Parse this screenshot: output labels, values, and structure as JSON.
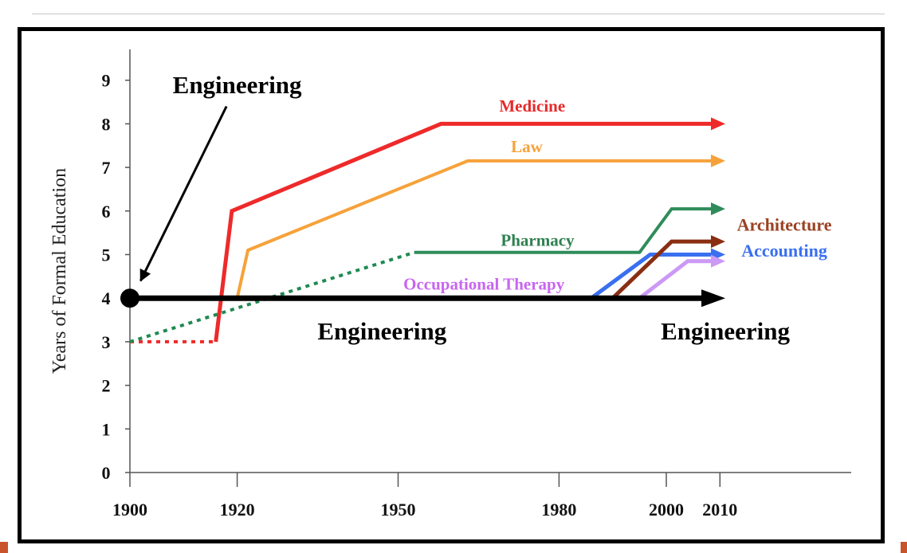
{
  "chart_data": {
    "type": "line",
    "title": "",
    "xlabel": "",
    "ylabel": "Years of Formal Education",
    "xlim": [
      1900,
      2040
    ],
    "ylim": [
      0,
      9.6
    ],
    "x_ticks": [
      1900,
      1920,
      1950,
      1980,
      2000,
      2010
    ],
    "x_ticks_minor": [
      2010
    ],
    "y_ticks": [
      0,
      1,
      2,
      3,
      4,
      5,
      6,
      7,
      8,
      9
    ],
    "series": [
      {
        "name": "Medicine",
        "color": "#ee2a2a",
        "width": 5,
        "dash": false,
        "arrow": true,
        "points": [
          [
            1916,
            3.0
          ],
          [
            1919,
            6.0
          ],
          [
            1958,
            8.0
          ],
          [
            2011,
            8.0
          ]
        ]
      },
      {
        "name": "Medicine (pre-1916)",
        "color": "#ee2a2a",
        "width": 4,
        "dash": true,
        "arrow": false,
        "points": [
          [
            1900,
            3.0
          ],
          [
            1916,
            3.0
          ]
        ]
      },
      {
        "name": "Law",
        "color": "#f6a23a",
        "width": 4,
        "dash": false,
        "arrow": true,
        "points": [
          [
            1920,
            4.0
          ],
          [
            1922,
            5.1
          ],
          [
            1963,
            7.15
          ],
          [
            2011,
            7.15
          ]
        ]
      },
      {
        "name": "Pharmacy (early)",
        "color": "#1f8a52",
        "width": 4,
        "dash": true,
        "arrow": false,
        "points": [
          [
            1900,
            3.0
          ],
          [
            1953,
            5.05
          ]
        ]
      },
      {
        "name": "Pharmacy",
        "color": "#2f8c5a",
        "width": 4,
        "dash": false,
        "arrow": true,
        "points": [
          [
            1953,
            5.05
          ],
          [
            1995,
            5.05
          ],
          [
            2001,
            6.05
          ],
          [
            2011,
            6.05
          ]
        ]
      },
      {
        "name": "Accounting",
        "color": "#3a6ff0",
        "width": 5,
        "dash": false,
        "arrow": true,
        "points": [
          [
            1986,
            4.0
          ],
          [
            1997,
            5.0
          ],
          [
            2011,
            5.0
          ]
        ]
      },
      {
        "name": "Architecture",
        "color": "#8a2e12",
        "width": 5,
        "dash": false,
        "arrow": true,
        "points": [
          [
            1990,
            4.0
          ],
          [
            2001,
            5.3
          ],
          [
            2011,
            5.3
          ]
        ]
      },
      {
        "name": "Occupational Therapy",
        "color": "#cc99f5",
        "width": 5,
        "dash": false,
        "arrow": true,
        "points": [
          [
            1995,
            4.0
          ],
          [
            2004,
            4.85
          ],
          [
            2011,
            4.85
          ]
        ]
      },
      {
        "name": "Engineering",
        "color": "#000000",
        "width": 7,
        "dash": false,
        "arrow": true,
        "points": [
          [
            1900,
            4.0
          ],
          [
            2011,
            4.0
          ]
        ]
      }
    ],
    "annotations": [
      {
        "id": "medicine",
        "text": "Medicine",
        "color": "#e52a2a",
        "x": 1975,
        "y": 8.28,
        "anchor": "middle",
        "size": 21,
        "weight": "bold"
      },
      {
        "id": "law",
        "text": "Law",
        "color": "#f6a23a",
        "x": 1974,
        "y": 7.35,
        "anchor": "middle",
        "size": 21,
        "weight": "bold"
      },
      {
        "id": "pharmacy",
        "text": "Pharmacy",
        "color": "#2e8050",
        "x": 1976,
        "y": 5.2,
        "anchor": "middle",
        "size": 21,
        "weight": "bold"
      },
      {
        "id": "occupational-therapy",
        "text": "Occupational Therapy",
        "color": "#c866f0",
        "x": 1966,
        "y": 4.2,
        "anchor": "middle",
        "size": 21,
        "weight": "bold"
      },
      {
        "id": "architecture",
        "text": "Architecture",
        "color": "#9a4222",
        "x": 2022,
        "y": 5.55,
        "anchor": "middle",
        "size": 22,
        "weight": "bold"
      },
      {
        "id": "accounting",
        "text": "Accounting",
        "color": "#3a6ff0",
        "x": 2022,
        "y": 4.95,
        "anchor": "middle",
        "size": 22,
        "weight": "bold"
      },
      {
        "id": "engineering-top",
        "text": "Engineering",
        "color": "#000000",
        "x": 1920,
        "y": 8.7,
        "anchor": "middle",
        "size": 31,
        "weight": "bold"
      },
      {
        "id": "engineering-mid",
        "text": "Engineering",
        "color": "#000000",
        "x": 1947,
        "y": 3.05,
        "anchor": "middle",
        "size": 31,
        "weight": "bold"
      },
      {
        "id": "engineering-right",
        "text": "Engineering",
        "color": "#000000",
        "x": 2011,
        "y": 3.05,
        "anchor": "middle",
        "size": 31,
        "weight": "bold"
      }
    ],
    "callout_arrow": {
      "from": [
        1918,
        8.4
      ],
      "to": [
        1902,
        4.4
      ]
    },
    "start_marker": {
      "x": 1900,
      "y": 4.0
    }
  }
}
